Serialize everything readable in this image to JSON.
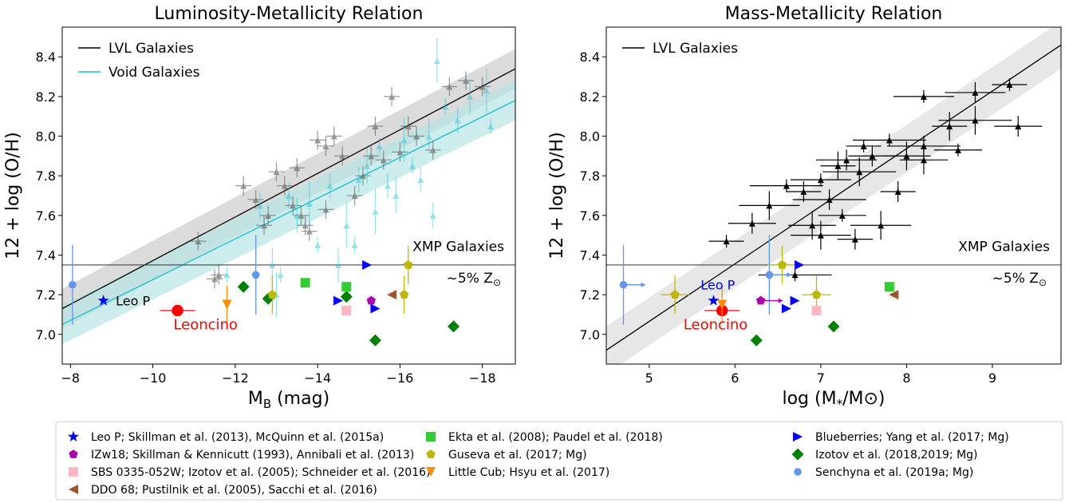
{
  "chart_data": [
    {
      "type": "scatter",
      "title": "Luminosity-Metallicity Relation",
      "xlabel": "M",
      "xlabel_sub": "B",
      "xlabel_unit": " (mag)",
      "ylabel": "12 + log (O/H)",
      "xlim": [
        -7.8,
        -18.8
      ],
      "ylim": [
        6.85,
        8.55
      ],
      "xticks": [
        -8,
        -10,
        -12,
        -14,
        -16,
        -18
      ],
      "xtick_labels": [
        "−8",
        "−10",
        "−12",
        "−14",
        "−16",
        "−18"
      ],
      "yticks": [
        7.0,
        7.2,
        7.4,
        7.6,
        7.8,
        8.0,
        8.2,
        8.4
      ],
      "ytick_labels": [
        "7.0",
        "7.2",
        "7.4",
        "7.6",
        "7.8",
        "8.0",
        "8.2",
        "8.4"
      ],
      "legend_position": "top-left",
      "legend": [
        {
          "label": "LVL Galaxies",
          "color": "#000000"
        },
        {
          "label": "Void Galaxies",
          "color": "#17becf"
        }
      ],
      "fits": [
        {
          "name": "LVL Galaxies",
          "color": "#000000",
          "band_color": "#cccccc",
          "x": [
            -7.8,
            -18.8
          ],
          "y": [
            7.13,
            8.34
          ],
          "band_half_width": 0.1
        },
        {
          "name": "Void Galaxies",
          "color": "#17becf",
          "band_color": "#b8e6e6",
          "x": [
            -7.8,
            -18.8
          ],
          "y": [
            7.05,
            8.18
          ],
          "band_half_width": 0.1
        }
      ],
      "xmp_threshold": 7.35,
      "annotations": [
        {
          "text": "XMP Galaxies",
          "x": -17.2,
          "y": 7.42
        },
        {
          "text": "~5% Z",
          "sub": "⊙",
          "x": -17.2,
          "y": 7.26
        },
        {
          "text": "Leo P",
          "x": -9.1,
          "y": 7.17,
          "color": "#000000"
        },
        {
          "text": "Leoncino",
          "x": -10.5,
          "y": 7.05,
          "color": "#ff0000"
        }
      ],
      "lvl_points": [
        {
          "x": -11.1,
          "y": 7.47
        },
        {
          "x": -11.6,
          "y": 7.3
        },
        {
          "x": -11.5,
          "y": 7.28
        },
        {
          "x": -12.2,
          "y": 7.75
        },
        {
          "x": -12.5,
          "y": 7.68
        },
        {
          "x": -12.7,
          "y": 7.55
        },
        {
          "x": -12.8,
          "y": 7.6
        },
        {
          "x": -13.0,
          "y": 7.82
        },
        {
          "x": -13.2,
          "y": 7.75
        },
        {
          "x": -13.4,
          "y": 7.65
        },
        {
          "x": -13.5,
          "y": 7.84
        },
        {
          "x": -13.6,
          "y": 7.6
        },
        {
          "x": -13.7,
          "y": 7.55
        },
        {
          "x": -13.8,
          "y": 7.52
        },
        {
          "x": -14.0,
          "y": 7.98
        },
        {
          "x": -14.2,
          "y": 7.95
        },
        {
          "x": -14.4,
          "y": 8.0
        },
        {
          "x": -14.6,
          "y": 7.9
        },
        {
          "x": -14.9,
          "y": 7.7
        },
        {
          "x": -15.1,
          "y": 7.8
        },
        {
          "x": -15.3,
          "y": 7.9
        },
        {
          "x": -15.4,
          "y": 8.05
        },
        {
          "x": -15.6,
          "y": 7.88
        },
        {
          "x": -15.8,
          "y": 8.2
        },
        {
          "x": -16.0,
          "y": 7.92
        },
        {
          "x": -16.2,
          "y": 8.05
        },
        {
          "x": -16.4,
          "y": 8.0
        },
        {
          "x": -16.8,
          "y": 7.93
        },
        {
          "x": -17.2,
          "y": 8.25
        },
        {
          "x": -17.6,
          "y": 8.28
        },
        {
          "x": -18.0,
          "y": 8.25
        },
        {
          "x": -14.2,
          "y": 7.63
        }
      ],
      "void_points": [
        {
          "x": -11.8,
          "y": 7.3
        },
        {
          "x": -12.6,
          "y": 7.65
        },
        {
          "x": -12.9,
          "y": 7.35
        },
        {
          "x": -13.0,
          "y": 7.2
        },
        {
          "x": -13.1,
          "y": 7.3
        },
        {
          "x": -13.3,
          "y": 7.7
        },
        {
          "x": -13.5,
          "y": 7.6
        },
        {
          "x": -13.8,
          "y": 7.66
        },
        {
          "x": -14.0,
          "y": 7.45
        },
        {
          "x": -14.3,
          "y": 7.75
        },
        {
          "x": -14.5,
          "y": 7.35
        },
        {
          "x": -14.7,
          "y": 7.55
        },
        {
          "x": -14.9,
          "y": 7.45
        },
        {
          "x": -15.0,
          "y": 7.78
        },
        {
          "x": -15.2,
          "y": 7.85
        },
        {
          "x": -15.4,
          "y": 7.62
        },
        {
          "x": -15.5,
          "y": 7.95
        },
        {
          "x": -15.7,
          "y": 7.75
        },
        {
          "x": -15.9,
          "y": 7.7
        },
        {
          "x": -16.1,
          "y": 7.98
        },
        {
          "x": -16.3,
          "y": 7.85
        },
        {
          "x": -16.5,
          "y": 7.78
        },
        {
          "x": -16.7,
          "y": 8.0
        },
        {
          "x": -16.9,
          "y": 8.38
        },
        {
          "x": -17.1,
          "y": 8.15
        },
        {
          "x": -17.4,
          "y": 8.08
        },
        {
          "x": -17.7,
          "y": 8.2
        },
        {
          "x": -18.1,
          "y": 8.23
        },
        {
          "x": -18.2,
          "y": 8.05
        },
        {
          "x": -16.8,
          "y": 7.6
        }
      ],
      "special_points": [
        {
          "series": "Leo P",
          "x": -8.8,
          "y": 7.17,
          "marker": "star",
          "color": "#0000ff"
        },
        {
          "series": "Leoncino",
          "x": -10.6,
          "y": 7.12,
          "marker": "circle-big",
          "color": "#ff0000"
        },
        {
          "series": "Senchyna",
          "x": -8.05,
          "y": 7.25,
          "marker": "circle",
          "color": "#6495ed"
        },
        {
          "series": "Senchyna",
          "x": -12.5,
          "y": 7.3,
          "marker": "circle",
          "color": "#6495ed"
        },
        {
          "series": "Little Cub",
          "x": -11.8,
          "y": 7.15,
          "marker": "tri-down",
          "color": "#ff8c00"
        },
        {
          "series": "Izotov 2018",
          "x": -12.2,
          "y": 7.24,
          "marker": "diamond",
          "color": "#008000"
        },
        {
          "series": "Izotov 2018",
          "x": -12.8,
          "y": 7.18,
          "marker": "diamond",
          "color": "#008000"
        },
        {
          "series": "Izotov 2018",
          "x": -14.7,
          "y": 7.19,
          "marker": "diamond",
          "color": "#008000"
        },
        {
          "series": "Izotov 2018",
          "x": -15.4,
          "y": 6.97,
          "marker": "diamond",
          "color": "#008000"
        },
        {
          "series": "Izotov 2018",
          "x": -17.3,
          "y": 7.04,
          "marker": "diamond",
          "color": "#008000"
        },
        {
          "series": "Guseva",
          "x": -12.9,
          "y": 7.2,
          "marker": "pentagon",
          "color": "#bdb700"
        },
        {
          "series": "Guseva",
          "x": -16.2,
          "y": 7.35,
          "marker": "pentagon",
          "color": "#bdb700"
        },
        {
          "series": "Guseva",
          "x": -16.1,
          "y": 7.2,
          "marker": "pentagon",
          "color": "#bdb700"
        },
        {
          "series": "Ekta",
          "x": -13.7,
          "y": 7.26,
          "marker": "square",
          "color": "#32cd32"
        },
        {
          "series": "Ekta",
          "x": -14.7,
          "y": 7.24,
          "marker": "square",
          "color": "#32cd32"
        },
        {
          "series": "SBS",
          "x": -14.7,
          "y": 7.12,
          "marker": "square",
          "color": "#ffb6c1"
        },
        {
          "series": "IZw18",
          "x": -15.3,
          "y": 7.17,
          "marker": "pentagon",
          "color": "#b000b0"
        },
        {
          "series": "DDO 68",
          "x": -15.8,
          "y": 7.2,
          "marker": "tri-left",
          "color": "#a0522d"
        },
        {
          "series": "Blueberries",
          "x": -15.2,
          "y": 7.35,
          "marker": "tri-right",
          "color": "#0000ff"
        },
        {
          "series": "Blueberries",
          "x": -14.5,
          "y": 7.17,
          "marker": "tri-right",
          "color": "#0000ff"
        },
        {
          "series": "Blueberries",
          "x": -15.4,
          "y": 7.13,
          "marker": "tri-right",
          "color": "#0000ff"
        }
      ]
    },
    {
      "type": "scatter",
      "title": "Mass-Metallicity Relation",
      "xlabel": "log (M",
      "xlabel_sub": "*",
      "xlabel_unit": "/M⊙)",
      "ylabel": "12 + log (O/H)",
      "xlim": [
        4.5,
        9.8
      ],
      "ylim": [
        6.85,
        8.55
      ],
      "xticks": [
        5,
        6,
        7,
        8,
        9
      ],
      "xtick_labels": [
        "5",
        "6",
        "7",
        "8",
        "9"
      ],
      "yticks": [
        7.0,
        7.2,
        7.4,
        7.6,
        7.8,
        8.0,
        8.2,
        8.4
      ],
      "ytick_labels": [
        "7.0",
        "7.2",
        "7.4",
        "7.6",
        "7.8",
        "8.0",
        "8.2",
        "8.4"
      ],
      "legend_position": "top-left",
      "legend": [
        {
          "label": "LVL Galaxies",
          "color": "#000000"
        }
      ],
      "fits": [
        {
          "name": "LVL Galaxies",
          "color": "#000000",
          "band_color": "#dddddd",
          "x": [
            4.5,
            9.8
          ],
          "y": [
            6.92,
            8.46
          ],
          "band_half_width": 0.12
        }
      ],
      "xmp_threshold": 7.35,
      "annotations": [
        {
          "text": "XMP Galaxies",
          "x": 9.0,
          "y": 7.42
        },
        {
          "text": "~5% Z",
          "sub": "⊙",
          "x": 9.0,
          "y": 7.26
        },
        {
          "text": "Leo P",
          "x": 5.6,
          "y": 7.25,
          "color": "#0000ff"
        },
        {
          "text": "Leoncino",
          "x": 5.4,
          "y": 7.05,
          "color": "#ff0000"
        }
      ],
      "lvl_points": [
        {
          "x": 5.9,
          "y": 7.47
        },
        {
          "x": 6.2,
          "y": 7.56
        },
        {
          "x": 6.4,
          "y": 7.65
        },
        {
          "x": 6.6,
          "y": 7.75
        },
        {
          "x": 6.8,
          "y": 7.72
        },
        {
          "x": 6.9,
          "y": 7.55
        },
        {
          "x": 7.0,
          "y": 7.78
        },
        {
          "x": 7.1,
          "y": 7.68
        },
        {
          "x": 7.2,
          "y": 7.85
        },
        {
          "x": 7.25,
          "y": 7.6
        },
        {
          "x": 7.3,
          "y": 7.88
        },
        {
          "x": 7.45,
          "y": 7.82
        },
        {
          "x": 7.5,
          "y": 7.95
        },
        {
          "x": 7.6,
          "y": 7.9
        },
        {
          "x": 7.7,
          "y": 7.55
        },
        {
          "x": 7.8,
          "y": 7.98
        },
        {
          "x": 7.9,
          "y": 7.72
        },
        {
          "x": 8.0,
          "y": 7.9
        },
        {
          "x": 8.2,
          "y": 8.2
        },
        {
          "x": 8.2,
          "y": 7.95
        },
        {
          "x": 8.5,
          "y": 8.05
        },
        {
          "x": 8.6,
          "y": 7.93
        },
        {
          "x": 8.8,
          "y": 8.22
        },
        {
          "x": 8.8,
          "y": 8.08
        },
        {
          "x": 9.2,
          "y": 8.26
        },
        {
          "x": 9.3,
          "y": 8.05
        },
        {
          "x": 7.0,
          "y": 7.5
        },
        {
          "x": 6.7,
          "y": 7.3
        },
        {
          "x": 7.4,
          "y": 7.48
        },
        {
          "x": 8.2,
          "y": 7.88
        }
      ],
      "special_points": [
        {
          "series": "Senchyna",
          "x": 4.7,
          "y": 7.25,
          "marker": "circle",
          "color": "#6495ed"
        },
        {
          "series": "Senchyna",
          "x": 6.4,
          "y": 7.3,
          "marker": "circle",
          "color": "#6495ed"
        },
        {
          "series": "Leo P",
          "x": 5.75,
          "y": 7.17,
          "marker": "star",
          "color": "#0000ff"
        },
        {
          "series": "Leoncino",
          "x": 5.85,
          "y": 7.12,
          "marker": "circle-big",
          "color": "#ff0000"
        },
        {
          "series": "Little Cub",
          "x": 5.85,
          "y": 7.15,
          "marker": "tri-down",
          "color": "#ff8c00"
        },
        {
          "series": "Guseva",
          "x": 5.3,
          "y": 7.2,
          "marker": "pentagon",
          "color": "#bdb700"
        },
        {
          "series": "Guseva",
          "x": 6.55,
          "y": 7.35,
          "marker": "pentagon",
          "color": "#bdb700"
        },
        {
          "series": "Guseva",
          "x": 6.95,
          "y": 7.2,
          "marker": "pentagon",
          "color": "#bdb700"
        },
        {
          "series": "IZw18",
          "x": 6.3,
          "y": 7.17,
          "marker": "pentagon",
          "color": "#b000b0"
        },
        {
          "series": "Izotov 2018",
          "x": 6.25,
          "y": 6.97,
          "marker": "diamond",
          "color": "#008000"
        },
        {
          "series": "Izotov 2018",
          "x": 7.15,
          "y": 7.04,
          "marker": "diamond",
          "color": "#008000"
        },
        {
          "series": "Blueberries",
          "x": 6.75,
          "y": 7.35,
          "marker": "tri-right",
          "color": "#0000ff"
        },
        {
          "series": "Blueberries",
          "x": 6.7,
          "y": 7.17,
          "marker": "tri-right",
          "color": "#0000ff"
        },
        {
          "series": "Blueberries",
          "x": 6.6,
          "y": 7.13,
          "marker": "tri-right",
          "color": "#0000ff"
        },
        {
          "series": "SBS",
          "x": 6.95,
          "y": 7.12,
          "marker": "square",
          "color": "#ffb6c1"
        },
        {
          "series": "Ekta",
          "x": 7.8,
          "y": 7.24,
          "marker": "square",
          "color": "#32cd32"
        },
        {
          "series": "DDO 68",
          "x": 7.85,
          "y": 7.2,
          "marker": "tri-left",
          "color": "#a0522d"
        }
      ]
    }
  ],
  "shared_legend": [
    {
      "label": "Leo P; Skillman et al. (2013), McQuinn et al. (2015a)",
      "marker": "star",
      "color": "#0000ff"
    },
    {
      "label": "IZw18; Skillman & Kennicutt (1993), Annibali et al. (2013)",
      "marker": "pentagon",
      "color": "#b000b0"
    },
    {
      "label": "SBS 0335-052W; Izotov et al. (2005); Schneider et al. (2016)",
      "marker": "square",
      "color": "#ffb6c1"
    },
    {
      "label": "DDO 68; Pustilnik et al. (2005), Sacchi et al. (2016)",
      "marker": "tri-left",
      "color": "#a0522d"
    },
    {
      "label": "Ekta et al. (2008); Paudel et al. (2018)",
      "marker": "square",
      "color": "#32cd32"
    },
    {
      "label": "Guseva et al. (2017; Mg)",
      "marker": "pentagon",
      "color": "#bdb700"
    },
    {
      "label": "Little Cub; Hsyu et al. (2017)",
      "marker": "tri-down",
      "color": "#ff8c00"
    },
    {
      "label": "Blueberries; Yang et al. (2017; Mg)",
      "marker": "tri-right",
      "color": "#0000ff"
    },
    {
      "label": "Izotov et al. (2018,2019; Mg)",
      "marker": "diamond",
      "color": "#008000"
    },
    {
      "label": "Senchyna et al. (2019a; Mg)",
      "marker": "circle",
      "color": "#6495ed"
    }
  ]
}
